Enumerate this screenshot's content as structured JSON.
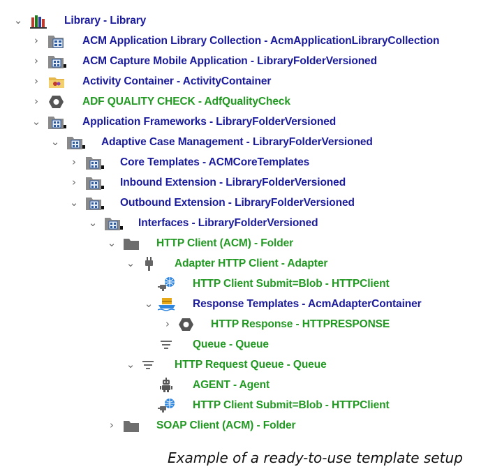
{
  "tree": {
    "rows": [
      {
        "toggle": "⌄",
        "icon": "library-books-icon",
        "label": "Library - Library",
        "color": "blue"
      },
      {
        "toggle": "›",
        "icon": "folder-collection-icon",
        "label": "ACM Application Library Collection - AcmApplicationLibraryCollection",
        "color": "blue"
      },
      {
        "toggle": "›",
        "icon": "folder-versioned-icon",
        "label": "ACM Capture Mobile Application - LibraryFolderVersioned",
        "color": "blue"
      },
      {
        "toggle": "›",
        "icon": "activity-container-icon",
        "label": "Activity Container - ActivityContainer",
        "color": "blue"
      },
      {
        "toggle": "›",
        "icon": "hexagon-icon",
        "label": "ADF QUALITY CHECK - AdfQualityCheck",
        "color": "green"
      },
      {
        "toggle": "⌄",
        "icon": "folder-versioned-icon",
        "label": "Application Frameworks - LibraryFolderVersioned",
        "color": "blue"
      },
      {
        "toggle": "⌄",
        "icon": "folder-versioned-icon",
        "label": "Adaptive Case Management - LibraryFolderVersioned",
        "color": "blue"
      },
      {
        "toggle": "›",
        "icon": "folder-versioned-icon",
        "label": "Core Templates - ACMCoreTemplates",
        "color": "blue"
      },
      {
        "toggle": "›",
        "icon": "folder-versioned-icon",
        "label": "Inbound Extension - LibraryFolderVersioned",
        "color": "blue"
      },
      {
        "toggle": "⌄",
        "icon": "folder-versioned-icon",
        "label": "Outbound Extension - LibraryFolderVersioned",
        "color": "blue"
      },
      {
        "toggle": "⌄",
        "icon": "folder-versioned-icon",
        "label": "Interfaces - LibraryFolderVersioned",
        "color": "blue"
      },
      {
        "toggle": "⌄",
        "icon": "folder-icon",
        "label": "HTTP Client (ACM) - Folder",
        "color": "green"
      },
      {
        "toggle": "⌄",
        "icon": "adapter-plug-icon",
        "label": "Adapter HTTP Client - Adapter",
        "color": "green"
      },
      {
        "toggle": "",
        "icon": "globe-plug-icon",
        "label": "HTTP Client Submit=Blob - HTTPClient",
        "color": "green"
      },
      {
        "toggle": "⌄",
        "icon": "adapter-container-icon",
        "label": "Response Templates - AcmAdapterContainer",
        "color": "blue"
      },
      {
        "toggle": "›",
        "icon": "hexagon-icon",
        "label": "HTTP Response - HTTPRESPONSE",
        "color": "green"
      },
      {
        "toggle": "",
        "icon": "queue-icon",
        "label": "Queue - Queue",
        "color": "green"
      },
      {
        "toggle": "⌄",
        "icon": "queue-icon",
        "label": "HTTP Request Queue - Queue",
        "color": "green"
      },
      {
        "toggle": "",
        "icon": "agent-robot-icon",
        "label": "AGENT - Agent",
        "color": "green"
      },
      {
        "toggle": "",
        "icon": "globe-plug-icon",
        "label": "HTTP Client Submit=Blob - HTTPClient",
        "color": "green"
      },
      {
        "toggle": "›",
        "icon": "folder-icon",
        "label": "SOAP Client (ACM) - Folder",
        "color": "green"
      }
    ]
  },
  "caption": "Example of a ready-to-use template setup",
  "colors": {
    "blue_label": "#1a1a9c",
    "green_label": "#229922"
  }
}
